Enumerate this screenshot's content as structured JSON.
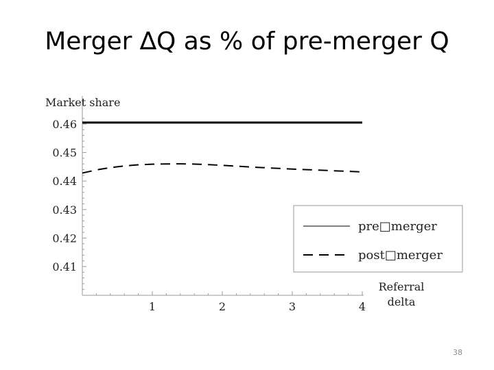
{
  "slide": {
    "title": "Merger ∆Q as % of pre-merger Q",
    "page_number": "38"
  },
  "chart_data": {
    "type": "line",
    "title": "",
    "ylabel": "Market share",
    "xlabel_lines": [
      "Referral",
      "delta"
    ],
    "xlim": [
      0,
      4
    ],
    "ylim": [
      0.4,
      0.46
    ],
    "x_ticks": [
      1,
      2,
      3,
      4
    ],
    "y_ticks": [
      0.41,
      0.42,
      0.43,
      0.44,
      0.45,
      0.46
    ],
    "y_tick_labels": [
      "0.41",
      "0.42",
      "0.43",
      "0.44",
      "0.45",
      "0.46"
    ],
    "grid": false,
    "legend_position": "bottom-right",
    "series": [
      {
        "name": "pre\u0000merger",
        "display_name": "pre□merger",
        "style": "solid",
        "color": "#000000",
        "x": [
          0,
          1,
          2,
          3,
          4
        ],
        "y": [
          0.4605,
          0.4605,
          0.4605,
          0.4605,
          0.4605
        ]
      },
      {
        "name": "post\u0000merger",
        "display_name": "post□merger",
        "style": "dashed",
        "color": "#000000",
        "x": [
          0,
          0.25,
          0.5,
          0.75,
          1.0,
          1.25,
          1.5,
          1.75,
          2.0,
          2.5,
          3.0,
          3.5,
          4.0
        ],
        "y": [
          0.4428,
          0.4441,
          0.445,
          0.4456,
          0.4459,
          0.446,
          0.446,
          0.4458,
          0.4455,
          0.4448,
          0.4442,
          0.4437,
          0.4432
        ]
      }
    ]
  }
}
